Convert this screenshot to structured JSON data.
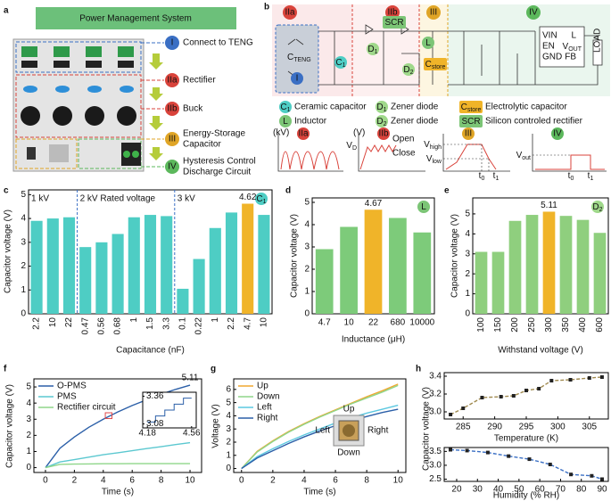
{
  "panel_a": {
    "label": "a",
    "title": "Power Management System",
    "items": [
      {
        "numeral": "I",
        "lines": [
          "Connect to TENG"
        ],
        "color": "#3a6fc4"
      },
      {
        "numeral": "IIa",
        "lines": [
          "Rectifier"
        ],
        "color": "#d9433b"
      },
      {
        "numeral": "IIb",
        "lines": [
          "Buck"
        ],
        "color": "#d9433b"
      },
      {
        "numeral": "III",
        "lines": [
          "Energy-Storage",
          "Capacitor"
        ],
        "color": "#e0a526"
      },
      {
        "numeral": "IV",
        "lines": [
          "Hysteresis Control",
          "Discharge Circuit"
        ],
        "color": "#5cb85c"
      }
    ]
  },
  "panel_b": {
    "label": "b",
    "sections": [
      {
        "numeral": "IIa",
        "color": "#d9433b"
      },
      {
        "numeral": "IIb",
        "color": "#d9433b"
      },
      {
        "numeral": "III",
        "color": "#e0a526"
      },
      {
        "numeral": "IV",
        "color": "#5cb85c"
      }
    ],
    "teng": {
      "symbol": "C",
      "sub": "TENG",
      "numeral": "I"
    },
    "chip": [
      "VIN",
      "EN",
      "GND",
      "L",
      "FB",
      "LOAD"
    ],
    "chip_out": {
      "symbol": "V",
      "sub": "OUT"
    },
    "legend": [
      {
        "symbol": "C",
        "sub": "1",
        "text": "Ceramic capacitor",
        "color": "#4ecdc4"
      },
      {
        "symbol": "D",
        "sub": "1",
        "text": "Zener diode",
        "color": "#9fd88a"
      },
      {
        "symbol": "C",
        "sub": "store",
        "text": "Electrolytic capacitor",
        "color": "#f0b429"
      },
      {
        "symbol": "L",
        "text": "Inductor",
        "color": "#7cc576"
      },
      {
        "symbol": "D",
        "sub": "2",
        "text": "Zener diode",
        "color": "#9fd88a"
      },
      {
        "symbol": "SCR",
        "text": "Silicon controled rectifier",
        "color": "#7cc576"
      }
    ],
    "waveforms": [
      {
        "unit": "(kV)",
        "tag": "IIa"
      },
      {
        "unit": "(V)",
        "tag": "IIb",
        "states": [
          "Open",
          "Close"
        ],
        "levels": [
          {
            "symbol": "V",
            "sub": "D"
          }
        ]
      },
      {
        "tag": "III",
        "levels": [
          {
            "symbol": "V",
            "sub": "high"
          },
          {
            "symbol": "V",
            "sub": "low"
          }
        ],
        "times": [
          {
            "symbol": "t",
            "sub": "0"
          },
          {
            "symbol": "t",
            "sub": "1"
          }
        ]
      },
      {
        "tag": "IV",
        "levels": [
          {
            "symbol": "V",
            "sub": "out"
          }
        ],
        "times": [
          {
            "symbol": "t",
            "sub": "0"
          },
          {
            "symbol": "t",
            "sub": "1"
          }
        ]
      }
    ]
  },
  "chart_data": [
    {
      "type": "bar",
      "panel": "c",
      "ylabel": "Capacitor voltage (V)",
      "xlabel": "Capacitance (nF)",
      "categories": [
        "2.2",
        "10",
        "22",
        "0.47",
        "0.56",
        "0.68",
        "1",
        "1.5",
        "3.3",
        "0.1",
        "0.22",
        "1",
        "2.2",
        "4.7",
        "10"
      ],
      "values": [
        3.9,
        4.0,
        4.05,
        2.8,
        3.0,
        3.35,
        4.05,
        4.15,
        4.1,
        1.05,
        2.3,
        3.6,
        4.25,
        4.62,
        4.15
      ],
      "value_labels": [
        null,
        null,
        null,
        null,
        null,
        null,
        null,
        null,
        null,
        null,
        null,
        null,
        null,
        "4.62",
        null
      ],
      "colors": [
        "#4ecdc4",
        "#4ecdc4",
        "#4ecdc4",
        "#4ecdc4",
        "#4ecdc4",
        "#4ecdc4",
        "#4ecdc4",
        "#4ecdc4",
        "#4ecdc4",
        "#4ecdc4",
        "#4ecdc4",
        "#4ecdc4",
        "#4ecdc4",
        "#f0b429",
        "#4ecdc4"
      ],
      "annotations": [
        "1 kV",
        "2 kV Rated voltage",
        "3 kV"
      ],
      "badge": {
        "symbol": "C",
        "sub": "1",
        "color": "#4ecdc4"
      },
      "ylim": [
        0,
        5.2
      ],
      "yticks": [
        0,
        1,
        2,
        3,
        4,
        5
      ]
    },
    {
      "type": "bar",
      "panel": "d",
      "ylabel": "Capacitor voltage (V)",
      "xlabel": "Inductance (μH)",
      "categories": [
        "4.7",
        "10",
        "22",
        "680",
        "10000"
      ],
      "values": [
        2.9,
        3.9,
        4.67,
        4.3,
        3.65
      ],
      "value_labels": [
        null,
        null,
        "4.67",
        null,
        null
      ],
      "colors": [
        "#7dcb7a",
        "#7dcb7a",
        "#f0b429",
        "#7dcb7a",
        "#7dcb7a"
      ],
      "badge": {
        "symbol": "L",
        "color": "#7cc576"
      },
      "ylim": [
        0,
        5.2
      ],
      "yticks": [
        0,
        1,
        2,
        3,
        4,
        5
      ]
    },
    {
      "type": "bar",
      "panel": "e",
      "ylabel": "Capacitor voltage (V)",
      "xlabel": "Withstand voltage (V)",
      "categories": [
        "100",
        "150",
        "200",
        "250",
        "300",
        "350",
        "400",
        "600"
      ],
      "values": [
        3.1,
        3.1,
        4.65,
        4.95,
        5.11,
        4.9,
        4.7,
        4.05
      ],
      "value_labels": [
        null,
        null,
        null,
        null,
        "5.11",
        null,
        null,
        null
      ],
      "colors": [
        "#8fcf7e",
        "#8fcf7e",
        "#8fcf7e",
        "#8fcf7e",
        "#f0b429",
        "#8fcf7e",
        "#8fcf7e",
        "#8fcf7e"
      ],
      "badge": {
        "symbol": "D",
        "sub": "2",
        "color": "#9fd88a"
      },
      "ylim": [
        0,
        5.8
      ],
      "yticks": [
        0,
        1,
        2,
        3,
        4,
        5
      ]
    },
    {
      "type": "line",
      "panel": "f",
      "ylabel": "Capacitor voltage (V)",
      "xlabel": "Time (s)",
      "legend": "upper left",
      "x": [
        0,
        1,
        2,
        3,
        4,
        5,
        6,
        7,
        8,
        9,
        10
      ],
      "series": [
        {
          "name": "O-PMS",
          "color": "#2b5fa8",
          "values": [
            0,
            1.2,
            1.9,
            2.5,
            3.0,
            3.45,
            3.85,
            4.2,
            4.55,
            4.85,
            5.11
          ],
          "value_labels": [
            null,
            null,
            null,
            null,
            null,
            null,
            null,
            null,
            null,
            null,
            "5.11"
          ]
        },
        {
          "name": "PMS",
          "color": "#5cc8d0",
          "values": [
            0,
            0.35,
            0.5,
            0.65,
            0.8,
            0.92,
            1.05,
            1.18,
            1.3,
            1.43,
            1.55
          ]
        },
        {
          "name": "Rectifier circuit",
          "color": "#8fd68a",
          "values": [
            0,
            0.2,
            0.22,
            0.23,
            0.24,
            0.24,
            0.25,
            0.25,
            0.25,
            0.25,
            0.25
          ]
        }
      ],
      "inset": {
        "x": [
          4.18,
          4.25,
          4.25,
          4.33,
          4.33,
          4.41,
          4.41,
          4.49,
          4.49,
          4.56
        ],
        "values": [
          3.1,
          3.1,
          3.16,
          3.16,
          3.22,
          3.22,
          3.28,
          3.28,
          3.34,
          3.34
        ],
        "xlim": [
          4.14,
          4.6
        ],
        "ylim": [
          3.04,
          3.4
        ],
        "xticks": [
          4.18,
          4.56
        ],
        "yticks": [
          3.08,
          3.36
        ],
        "color": "#2b5fa8"
      },
      "xlim": [
        -0.8,
        10.8
      ],
      "xticks": [
        0,
        2,
        4,
        6,
        8,
        10
      ],
      "ylim": [
        -0.3,
        5.5
      ],
      "yticks": [
        0,
        1,
        2,
        3,
        4,
        5
      ]
    },
    {
      "type": "line",
      "panel": "g",
      "ylabel": "Voltage (V)",
      "xlabel": "Time (s)",
      "legend": "upper left",
      "x": [
        0,
        1,
        2,
        3,
        4,
        5,
        6,
        7,
        8,
        9,
        10
      ],
      "series": [
        {
          "name": "Up",
          "color": "#f0a830",
          "values": [
            0,
            1.3,
            2.1,
            2.8,
            3.4,
            3.95,
            4.45,
            4.95,
            5.45,
            5.9,
            6.4
          ]
        },
        {
          "name": "Down",
          "color": "#8fd68a",
          "values": [
            0,
            1.25,
            2.05,
            2.75,
            3.35,
            3.9,
            4.4,
            4.9,
            5.35,
            5.8,
            6.3
          ]
        },
        {
          "name": "Left",
          "color": "#5cc8e0",
          "values": [
            0,
            0.9,
            1.5,
            2.05,
            2.55,
            3.0,
            3.45,
            3.85,
            4.2,
            4.5,
            4.8
          ]
        },
        {
          "name": "Right",
          "color": "#2b5fa8",
          "values": [
            0,
            0.8,
            1.35,
            1.9,
            2.4,
            2.85,
            3.25,
            3.6,
            3.95,
            4.25,
            4.5
          ]
        }
      ],
      "xlim": [
        -0.5,
        10.5
      ],
      "xticks": [
        0,
        2,
        4,
        6,
        8,
        10
      ],
      "ylim": [
        -0.3,
        6.8
      ],
      "yticks": [
        0,
        1,
        2,
        3,
        4,
        5,
        6
      ]
    },
    {
      "type": "line",
      "panel": "h",
      "ylabel": "Capacitor voltage (V)",
      "xlabel": "Temperature (K)",
      "x": [
        283,
        285,
        288,
        291,
        293,
        295,
        297,
        299,
        302,
        305,
        307
      ],
      "series": [
        {
          "color": "#a08a50",
          "marker_color": "#222",
          "linestyle": "dashed",
          "marker": "square",
          "values": [
            2.97,
            3.04,
            3.16,
            3.17,
            3.18,
            3.24,
            3.26,
            3.35,
            3.36,
            3.38,
            3.39
          ]
        }
      ],
      "xlim": [
        282,
        308
      ],
      "xticks": [
        285,
        290,
        295,
        300,
        305
      ],
      "ylim": [
        2.92,
        3.44
      ],
      "yticks": [
        {
          "value": 3,
          "label": "3.0"
        },
        3.2,
        3.4
      ]
    },
    {
      "type": "line",
      "xlabel": "Humidity (% RH)",
      "x": [
        17,
        25,
        35,
        45,
        55,
        65,
        75,
        85,
        90
      ],
      "series": [
        {
          "color": "#3a6fc4",
          "marker_color": "#222",
          "linestyle": "dashed",
          "marker": "square",
          "values": [
            3.56,
            3.53,
            3.46,
            3.33,
            3.22,
            3.03,
            2.67,
            2.62,
            2.5
          ]
        }
      ],
      "xlim": [
        14,
        93
      ],
      "xticks": [
        20,
        30,
        40,
        50,
        60,
        70,
        80,
        90
      ],
      "ylim": [
        2.42,
        3.64
      ],
      "yticks": [
        2.5,
        {
          "value": 3,
          "label": "3.0"
        },
        3.5
      ]
    }
  ]
}
